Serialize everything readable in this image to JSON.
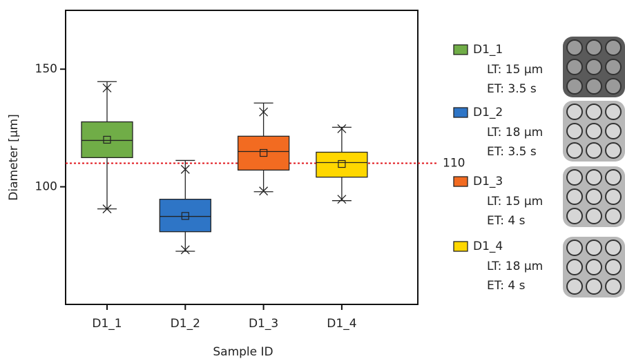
{
  "chart_data": {
    "type": "box",
    "x_label": "Sample ID",
    "y_label": "Diameter [µm]",
    "categories": [
      "D1_1",
      "D1_2",
      "D1_3",
      "D1_4"
    ],
    "boxes": [
      {
        "color": "#70ad47",
        "whisker_low": 90.6,
        "q1": 112.4,
        "median": 119.7,
        "q3": 127.6,
        "whisker_high": 144.7,
        "mean": 120,
        "min": 90.6,
        "max": 142,
        "lt": "LT: 15 µm",
        "et": "ET: 3.5 s"
      },
      {
        "color": "#2e75c6",
        "whisker_low": 72.6,
        "q1": 80.9,
        "median": 87.4,
        "q3": 94.7,
        "whisker_high": 111.2,
        "mean": 87.6,
        "min": 73.2,
        "max": 107.4,
        "lt": "LT: 18 µm",
        "et": "ET: 3.5 s"
      },
      {
        "color": "#f26b21",
        "whisker_low": 97.9,
        "q1": 107.1,
        "median": 115,
        "q3": 121.5,
        "whisker_high": 135.6,
        "mean": 114.4,
        "min": 98.2,
        "max": 131.8,
        "lt": "LT: 15 µm",
        "et": "ET: 4 s"
      },
      {
        "color": "#ffd700",
        "whisker_low": 94.1,
        "q1": 104.1,
        "median": 110.3,
        "q3": 114.7,
        "whisker_high": 125.3,
        "mean": 109.7,
        "min": 94.7,
        "max": 124.7,
        "lt": "LT: 18 µm",
        "et": "ET: 4 s"
      }
    ],
    "reference_line": {
      "value": 110,
      "color": "#e0161b"
    },
    "ylim": [
      50,
      175
    ],
    "yticks": [
      100,
      150
    ]
  }
}
